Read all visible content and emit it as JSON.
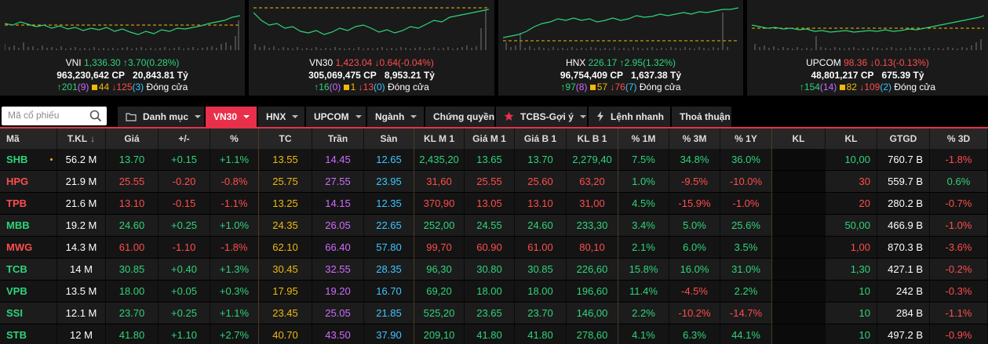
{
  "indices": [
    {
      "name": "VNI",
      "value": "1,336.30",
      "change": "↑3.70(0.28%)",
      "direction": "up",
      "volume": "963,230,642 CP",
      "amount": "20,843.81 Tỷ",
      "advances": "↑201",
      "ceil_count": "(9)",
      "unchanged": "44",
      "declines": "↓125",
      "floor_count": "(3)",
      "status": "Đóng cửa"
    },
    {
      "name": "VN30",
      "value": "1,423.04",
      "change": "↓0.64(-0.04%)",
      "direction": "down",
      "volume": "305,069,475 CP",
      "amount": "8,953.21 Tỷ",
      "advances": "↑16",
      "ceil_count": "(0)",
      "unchanged": "1",
      "declines": "↓13",
      "floor_count": "(0)",
      "status": "Đóng cửa"
    },
    {
      "name": "HNX",
      "value": "226.17",
      "change": "↑2.95(1.32%)",
      "direction": "up",
      "volume": "96,754,409 CP",
      "amount": "1,637.38 Tỷ",
      "advances": "↑97",
      "ceil_count": "(8)",
      "unchanged": "57",
      "declines": "↓76",
      "floor_count": "(7)",
      "status": "Đóng cửa"
    },
    {
      "name": "UPCOM",
      "value": "98.36",
      "change": "↓0.13(-0.13%)",
      "direction": "down",
      "volume": "48,801,217 CP",
      "amount": "675.39 Tỷ",
      "advances": "↑154",
      "ceil_count": "(14)",
      "unchanged": "82",
      "declines": "↓109",
      "floor_count": "(2)",
      "status": "Đóng cửa"
    }
  ],
  "search": {
    "placeholder": "Mã cổ phiếu"
  },
  "tabs": [
    {
      "label": "Danh mục",
      "icon": "folder-icon",
      "caret": true
    },
    {
      "label": "VN30",
      "active": true,
      "caret": true
    },
    {
      "label": "HNX",
      "caret": true
    },
    {
      "label": "UPCOM",
      "caret": true
    },
    {
      "label": "Ngành",
      "caret": true
    },
    {
      "label": "Chứng quyền",
      "caret": false
    },
    {
      "label": "TCBS-Gợi ý",
      "icon": "star-icon",
      "caret": true
    },
    {
      "label": "Lệnh nhanh",
      "icon": "lightning-icon",
      "caret": false
    },
    {
      "label": "Thoả thuận",
      "caret": false
    }
  ],
  "columns": [
    "Mã",
    "T.KL",
    "Giá",
    "+/-",
    "%",
    "TC",
    "Trần",
    "Sàn",
    "KL M 1",
    "Giá M 1",
    "Giá B 1",
    "KL B 1",
    "% 1M",
    "% 3M",
    "% 1Y",
    "KL",
    "KL",
    "GTGD",
    "% 3D"
  ],
  "sort_indicator": "↓",
  "colors": {
    "up": "#2ed47a",
    "down": "#ff4d4d",
    "ref": "#f0b90b",
    "ceiling": "#cf6bff",
    "floor": "#3cc6ff",
    "accent": "#e8304a"
  },
  "rows": [
    {
      "sym": "SHB",
      "dir": "up",
      "tkl": "56.2 M",
      "price": "13.70",
      "chg": "+0.15",
      "pct": "+1.1%",
      "tc": "13.55",
      "tran": "14.45",
      "san": "12.65",
      "klm1": "2,435,20",
      "gm1": "13.65",
      "gb1": "13.70",
      "klb1": "2,279,40",
      "p1m": "7.5%",
      "p3m": "34.8%",
      "p1y": "36.0%",
      "kl1": "",
      "kl2": "10,00",
      "gtgd": "760.7 B",
      "p3d": "-1.8%",
      "p1m_dir": "up",
      "p3m_dir": "up",
      "p1y_dir": "up",
      "kl2_dir": "up",
      "p3d_dir": "down",
      "gm1_dir": "up",
      "gb1_dir": "up",
      "flag": true
    },
    {
      "sym": "HPG",
      "dir": "down",
      "tkl": "21.9 M",
      "price": "25.55",
      "chg": "-0.20",
      "pct": "-0.8%",
      "tc": "25.75",
      "tran": "27.55",
      "san": "23.95",
      "klm1": "31,60",
      "gm1": "25.55",
      "gb1": "25.60",
      "klb1": "63,20",
      "p1m": "1.0%",
      "p3m": "-9.5%",
      "p1y": "-10.0%",
      "kl1": "",
      "kl2": "30",
      "gtgd": "559.7 B",
      "p3d": "0.6%",
      "p1m_dir": "up",
      "p3m_dir": "down",
      "p1y_dir": "down",
      "kl2_dir": "down",
      "p3d_dir": "up",
      "gm1_dir": "down",
      "gb1_dir": "down"
    },
    {
      "sym": "TPB",
      "dir": "down",
      "tkl": "21.6 M",
      "price": "13.10",
      "chg": "-0.15",
      "pct": "-1.1%",
      "tc": "13.25",
      "tran": "14.15",
      "san": "12.35",
      "klm1": "370,90",
      "gm1": "13.05",
      "gb1": "13.10",
      "klb1": "31,00",
      "p1m": "4.5%",
      "p3m": "-15.9%",
      "p1y": "-1.0%",
      "kl1": "",
      "kl2": "20",
      "gtgd": "280.2 B",
      "p3d": "-0.7%",
      "p1m_dir": "up",
      "p3m_dir": "down",
      "p1y_dir": "down",
      "kl2_dir": "down",
      "p3d_dir": "down",
      "gm1_dir": "down",
      "gb1_dir": "down"
    },
    {
      "sym": "MBB",
      "dir": "up",
      "tkl": "19.2 M",
      "price": "24.60",
      "chg": "+0.25",
      "pct": "+1.0%",
      "tc": "24.35",
      "tran": "26.05",
      "san": "22.65",
      "klm1": "252,00",
      "gm1": "24.55",
      "gb1": "24.60",
      "klb1": "233,30",
      "p1m": "3.4%",
      "p3m": "5.0%",
      "p1y": "25.6%",
      "kl1": "",
      "kl2": "50,00",
      "gtgd": "466.9 B",
      "p3d": "-1.0%",
      "p1m_dir": "up",
      "p3m_dir": "up",
      "p1y_dir": "up",
      "kl2_dir": "up",
      "p3d_dir": "down",
      "gm1_dir": "up",
      "gb1_dir": "up"
    },
    {
      "sym": "MWG",
      "dir": "down",
      "tkl": "14.3 M",
      "price": "61.00",
      "chg": "-1.10",
      "pct": "-1.8%",
      "tc": "62.10",
      "tran": "66.40",
      "san": "57.80",
      "klm1": "99,70",
      "gm1": "60.90",
      "gb1": "61.00",
      "klb1": "80,10",
      "p1m": "2.1%",
      "p3m": "6.0%",
      "p1y": "3.5%",
      "kl1": "",
      "kl2": "1,00",
      "gtgd": "870.3 B",
      "p3d": "-3.6%",
      "p1m_dir": "up",
      "p3m_dir": "up",
      "p1y_dir": "up",
      "kl2_dir": "down",
      "p3d_dir": "down",
      "gm1_dir": "down",
      "gb1_dir": "down"
    },
    {
      "sym": "TCB",
      "dir": "up",
      "tkl": "14 M",
      "price": "30.85",
      "chg": "+0.40",
      "pct": "+1.3%",
      "tc": "30.45",
      "tran": "32.55",
      "san": "28.35",
      "klm1": "96,30",
      "gm1": "30.80",
      "gb1": "30.85",
      "klb1": "226,60",
      "p1m": "15.8%",
      "p3m": "16.0%",
      "p1y": "31.0%",
      "kl1": "",
      "kl2": "1,30",
      "gtgd": "427.1 B",
      "p3d": "-0.2%",
      "p1m_dir": "up",
      "p3m_dir": "up",
      "p1y_dir": "up",
      "kl2_dir": "up",
      "p3d_dir": "down",
      "gm1_dir": "up",
      "gb1_dir": "up"
    },
    {
      "sym": "VPB",
      "dir": "up",
      "tkl": "13.5 M",
      "price": "18.00",
      "chg": "+0.05",
      "pct": "+0.3%",
      "tc": "17.95",
      "tran": "19.20",
      "san": "16.70",
      "klm1": "69,20",
      "gm1": "18.00",
      "gb1": "18.00",
      "klb1": "196,60",
      "p1m": "11.4%",
      "p3m": "-4.5%",
      "p1y": "2.2%",
      "kl1": "",
      "kl2": "10",
      "gtgd": "242 B",
      "p3d": "-0.3%",
      "p1m_dir": "up",
      "p3m_dir": "down",
      "p1y_dir": "up",
      "kl2_dir": "up",
      "p3d_dir": "down",
      "gm1_dir": "up",
      "gb1_dir": "up"
    },
    {
      "sym": "SSI",
      "dir": "up",
      "tkl": "12.1 M",
      "price": "23.70",
      "chg": "+0.25",
      "pct": "+1.1%",
      "tc": "23.45",
      "tran": "25.05",
      "san": "21.85",
      "klm1": "525,20",
      "gm1": "23.65",
      "gb1": "23.70",
      "klb1": "146,00",
      "p1m": "2.2%",
      "p3m": "-10.2%",
      "p1y": "-14.7%",
      "kl1": "",
      "kl2": "10",
      "gtgd": "284 B",
      "p3d": "-1.1%",
      "p1m_dir": "up",
      "p3m_dir": "down",
      "p1y_dir": "down",
      "kl2_dir": "up",
      "p3d_dir": "down",
      "gm1_dir": "up",
      "gb1_dir": "up"
    },
    {
      "sym": "STB",
      "dir": "up",
      "tkl": "12 M",
      "price": "41.80",
      "chg": "+1.10",
      "pct": "+2.7%",
      "tc": "40.70",
      "tran": "43.50",
      "san": "37.90",
      "klm1": "209,10",
      "gm1": "41.80",
      "gb1": "41.80",
      "klb1": "278,60",
      "p1m": "4.1%",
      "p3m": "6.3%",
      "p1y": "44.1%",
      "kl1": "",
      "kl2": "10",
      "gtgd": "497.2 B",
      "p3d": "-0.9%",
      "p1m_dir": "up",
      "p3m_dir": "up",
      "p1y_dir": "up",
      "kl2_dir": "up",
      "p3d_dir": "down",
      "gm1_dir": "up",
      "gb1_dir": "up"
    }
  ]
}
